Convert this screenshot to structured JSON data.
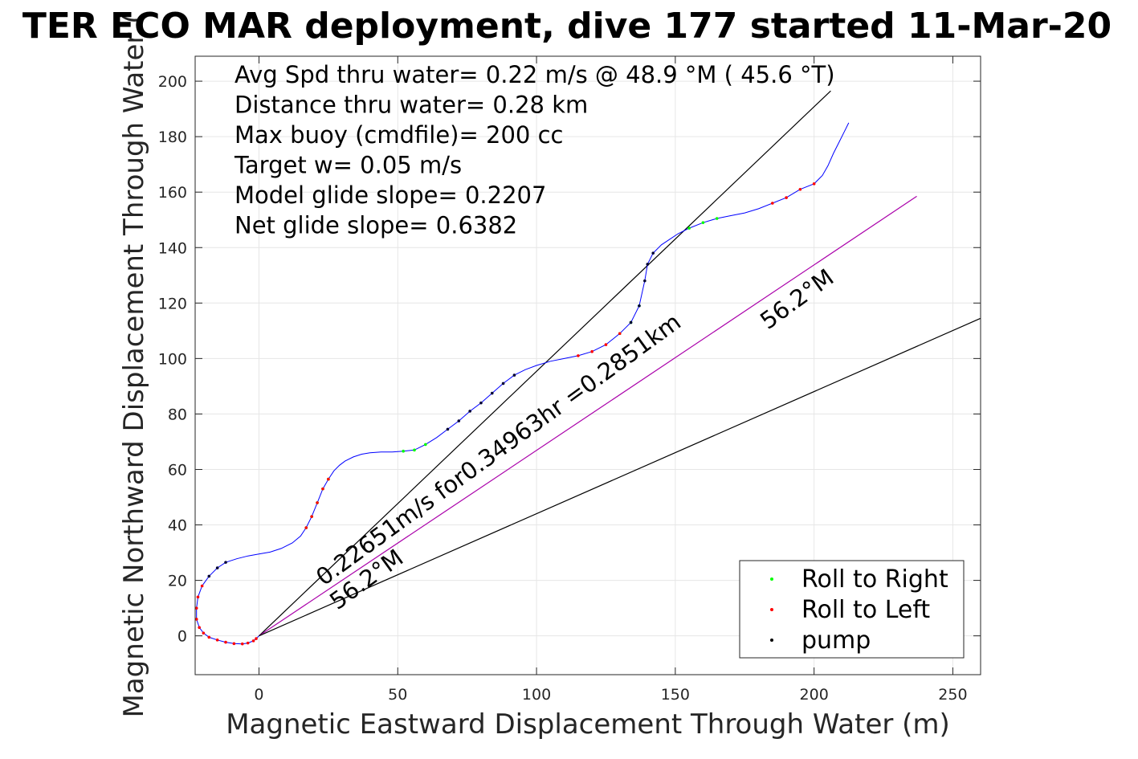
{
  "chart_data": {
    "type": "line",
    "title": "TER ECO MAR deployment, dive 177 started 11-Mar-20",
    "xlabel": "Magnetic Eastward Displacement Through Water (m)",
    "ylabel": "Magnetic Northward Displacement Through Water (",
    "xlim": [
      -23,
      260
    ],
    "ylim": [
      -14,
      209
    ],
    "xticks": [
      0,
      50,
      100,
      150,
      200,
      250
    ],
    "yticks": [
      0,
      20,
      40,
      60,
      80,
      100,
      120,
      140,
      160,
      180,
      200
    ],
    "grid": true,
    "legend_position": "bottom-right",
    "stats": [
      "Avg Spd thru water=  0.22 m/s @  48.9 °M ( 45.6 °T)",
      "Distance thru water=  0.28 km",
      "Max buoy (cmdfile)= 200 cc",
      "Target w= 0.05 m/s",
      "Model glide slope= 0.2207",
      "Net glide slope= 0.6382"
    ],
    "annotations": {
      "track_label": "0.22651m/s for0.34963hr =0.2851km",
      "heading_label_left": "56.2°M",
      "heading_label_right": "56.2°M"
    },
    "legend": [
      {
        "name": "Roll to Right",
        "color": "#00ff00"
      },
      {
        "name": "Roll to Left",
        "color": "#ff0000"
      },
      {
        "name": "pump",
        "color": "#000000"
      }
    ],
    "track": {
      "color": "#0000ff",
      "x": [
        0,
        -1,
        -2,
        -4,
        -6,
        -9,
        -12,
        -15,
        -18,
        -20,
        -21.5,
        -22.5,
        -22.5,
        -22,
        -20.5,
        -18,
        -15,
        -12,
        -8,
        -4,
        0,
        4,
        8,
        12,
        15,
        17,
        19,
        21,
        23,
        25,
        27,
        29,
        31,
        34,
        37,
        40,
        44,
        48,
        52,
        56,
        60,
        64,
        68,
        72,
        76,
        80,
        84,
        88,
        92,
        96,
        100,
        105,
        110,
        115,
        120,
        125,
        130,
        134,
        137,
        139,
        140,
        142,
        145,
        148,
        151,
        155,
        160,
        165,
        170,
        175,
        180,
        185,
        190,
        195,
        200,
        203,
        205,
        207,
        209,
        211,
        212.5
      ],
      "y": [
        0,
        -1,
        -1.8,
        -2.6,
        -2.9,
        -2.8,
        -2.3,
        -1.5,
        -0.5,
        1,
        3,
        6,
        10,
        14,
        18,
        21.5,
        24.5,
        26.5,
        27.8,
        28.8,
        29.5,
        30.2,
        31.5,
        33.5,
        36,
        39,
        43,
        48,
        53,
        56.5,
        59.5,
        61.5,
        63,
        64.5,
        65.5,
        66,
        66.3,
        66.3,
        66.6,
        67,
        69,
        71.5,
        74.5,
        77.5,
        81,
        84,
        87.5,
        91,
        94,
        96,
        97.5,
        99,
        100,
        101,
        102.5,
        105,
        109,
        113,
        119,
        128,
        134,
        138,
        141,
        143,
        145,
        147,
        149,
        150.5,
        151.5,
        152.5,
        154,
        156,
        158,
        161,
        163,
        166,
        169.5,
        174,
        178,
        182,
        185
      ]
    },
    "reference_lines": [
      {
        "name": "upper",
        "color": "#000000",
        "x": [
          0,
          206
        ],
        "y": [
          0,
          196.5
        ]
      },
      {
        "name": "heading",
        "color": "#aa00aa",
        "x": [
          0,
          237
        ],
        "y": [
          0,
          158.5
        ]
      },
      {
        "name": "lower",
        "color": "#000000",
        "x": [
          0,
          260
        ],
        "y": [
          0,
          114.5
        ]
      }
    ],
    "roll_right_segments": [
      [
        25,
        29
      ],
      [
        38,
        40
      ],
      [
        56,
        58
      ],
      [
        65,
        67
      ]
    ],
    "roll_left_segments": [
      [
        1,
        14
      ],
      [
        25,
        29
      ],
      [
        53,
        56
      ],
      [
        71,
        74
      ]
    ],
    "pump_segments": [
      [
        15,
        17
      ],
      [
        42,
        48
      ],
      [
        57,
        61
      ]
    ]
  }
}
